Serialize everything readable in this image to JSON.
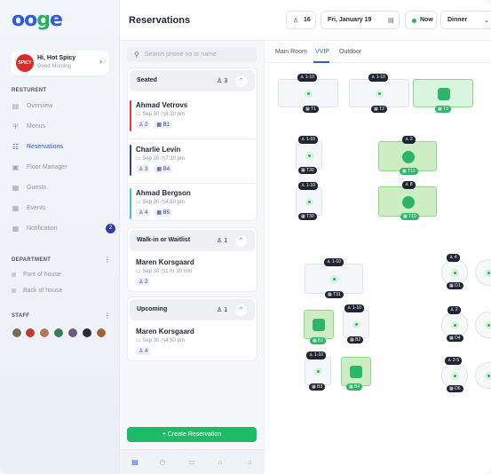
{
  "logo": {
    "text1": "oo",
    "text2": "g",
    "text3": "e"
  },
  "profile": {
    "name": "Hi, Hot Spicy",
    "greeting": "Good Morning",
    "logo_text": "SPICY"
  },
  "sidebar": {
    "section_restaurant": "RESTURENT",
    "items": [
      {
        "label": "Overview",
        "icon": "grid-icon",
        "glyph": "▤"
      },
      {
        "label": "Menus",
        "icon": "fork-knife-icon",
        "glyph": "Ψ"
      },
      {
        "label": "Reservations",
        "icon": "calendar-icon",
        "glyph": "☷"
      },
      {
        "label": "Floor Manager",
        "icon": "floor-icon",
        "glyph": "▣"
      },
      {
        "label": "Guests",
        "icon": "guests-icon",
        "glyph": "▦"
      },
      {
        "label": "Events",
        "icon": "events-icon",
        "glyph": "▦"
      },
      {
        "label": "Notification",
        "icon": "bell-icon",
        "glyph": "▦",
        "count": "2"
      }
    ],
    "section_department": "DEPARTMENT",
    "departments": [
      "Font of house",
      "Back of house"
    ],
    "section_staff": "STAFF",
    "staff_colors": [
      "#7a6a5a",
      "#c0392b",
      "#b07a5a",
      "#3a7a5a",
      "#6a5a7a",
      "#2a2a3a",
      "#a0603a"
    ]
  },
  "header": {
    "title": "Reservations",
    "guests": "16",
    "date": "Fri, January 19",
    "time": "Now",
    "meal": "Dinner"
  },
  "search": {
    "placeholder": "Search phone no or name"
  },
  "groups": {
    "seated": {
      "title": "Seated",
      "count": "3"
    },
    "walkin": {
      "title": "Walk-in or Waitlist",
      "count": "1"
    },
    "upcoming": {
      "title": "Upcoming",
      "count": "1"
    }
  },
  "reservations": [
    {
      "name": "Ahmad Vetrovs",
      "date": "Sep 30",
      "time": "8:30 pm",
      "guests": "2",
      "table": "B1",
      "color": "#e23b3b"
    },
    {
      "name": "Charlie Levin",
      "date": "Sep 30",
      "time": "7:30 pm",
      "guests": "3",
      "table": "B4",
      "color": "#2f3ea8"
    },
    {
      "name": "Ahmad Bergson",
      "date": "Sep 30",
      "time": "4:50 pm",
      "guests": "4",
      "table": "B5",
      "color": "#3fc3d8"
    }
  ],
  "walkin": {
    "name": "Maren Korsgaard",
    "date": "Sep 30",
    "wait": "1 hr 30 min",
    "guests": "2"
  },
  "upcoming": {
    "name": "Maren Korsgaard",
    "date": "Sep 30",
    "time": "4:50 pm",
    "guests": "4"
  },
  "create_label": "+   Create Reservation",
  "tabs": [
    "Main Room",
    "VVIP",
    "Outdoor"
  ],
  "tables": [
    {
      "id": "T1",
      "cap": "1-10"
    },
    {
      "id": "T2",
      "cap": "1-10"
    },
    {
      "id": "T3",
      "cap": ""
    },
    {
      "id": "T30a",
      "label": "T30",
      "cap": "1-10"
    },
    {
      "id": "T12",
      "cap": "2"
    },
    {
      "id": "T30b",
      "label": "T30",
      "cap": "1-10"
    },
    {
      "id": "T10",
      "cap": "8"
    },
    {
      "id": "T31",
      "cap": "1-10"
    },
    {
      "id": "B1",
      "cap": ""
    },
    {
      "id": "B2",
      "cap": "1-10"
    },
    {
      "id": "B3",
      "cap": "1-10"
    },
    {
      "id": "B4",
      "cap": ""
    },
    {
      "id": "D1",
      "cap": "4"
    },
    {
      "id": "D4",
      "cap": "2"
    },
    {
      "id": "D6",
      "cap": "2-5"
    }
  ]
}
